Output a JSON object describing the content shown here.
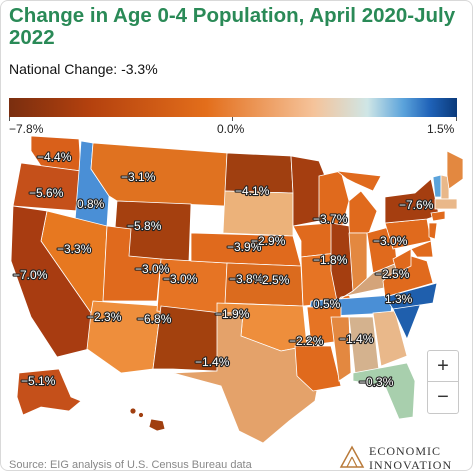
{
  "title": "Change in Age 0-4 Population, April 2020-July 2022",
  "subtitle": "National Change: -3.3%",
  "legend": {
    "min_label": "−7.8%",
    "mid_label": "0.0%",
    "max_label": "1.5%",
    "colors": [
      "#7a2e0f",
      "#b4410e",
      "#e36e1b",
      "#f5c39a",
      "#cfe6e6",
      "#5ba3db",
      "#1f62b8",
      "#0b3a7a"
    ]
  },
  "map_labels": {
    "WA": "−4.4%",
    "OR": "−5.6%",
    "ID": "0.8%",
    "MT": "−3.1%",
    "WY": "−5.8%",
    "CA": "−7.0%",
    "NV": "−3.3%",
    "UT": "−3.0%",
    "AZ": "−2.3%",
    "NM": "−6.8%",
    "CO": "−3.0%",
    "NE": "−3.9%",
    "KS": "−3.8%",
    "OK": "−1.9%",
    "TX": "−1.4%",
    "MN": "−4.1%",
    "IA": "−2.9%",
    "MO": "−2.5%",
    "WI": "−3.7%",
    "IN": "−1.8%",
    "TN": "0.5%",
    "NC": "1.3%",
    "MS": "−2.2%",
    "AL": "−1.4%",
    "FL": "−0.3%",
    "PA": "−3.0%",
    "VA": "−2.5%",
    "NY": "−7.6%",
    "AK": "−5.1%"
  },
  "zoom": {
    "in_label": "+",
    "out_label": "−"
  },
  "source": "Source: EIG analysis of U.S. Census Bureau data",
  "logo": {
    "line1": "ECONOMIC",
    "line2": "INNOVATION"
  }
}
